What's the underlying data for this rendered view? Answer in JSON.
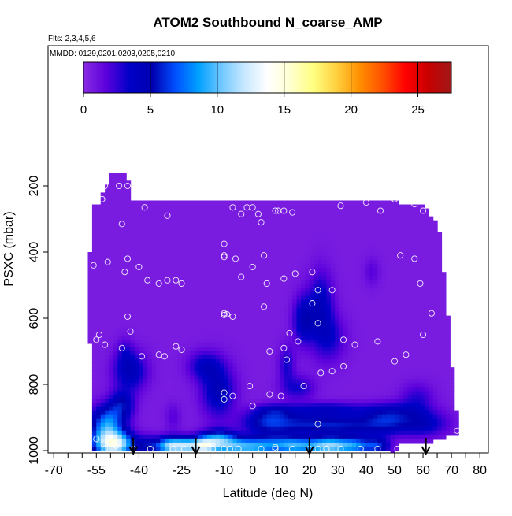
{
  "chart_data": {
    "type": "heatmap",
    "title": "ATOM2 Southbound N_coarse_AMP",
    "subtitle_flights": "Flts: 2,3,4,5,6",
    "subtitle_dates": "MMDD: 0129,0201,0203,0205,0210",
    "xlabel": "Latitude (deg N)",
    "ylabel": "PSXC (mbar)",
    "xlim": [
      -72,
      83
    ],
    "ylim": [
      1000,
      50
    ],
    "x_ticks": [
      -70,
      -55,
      -40,
      -25,
      -10,
      0,
      10,
      20,
      30,
      40,
      50,
      60,
      70,
      80
    ],
    "x_tick_labels": [
      "-70",
      "-55",
      "-40",
      "-25",
      "-10",
      "0",
      "10",
      "20",
      "30",
      "40",
      "50",
      "60",
      "70",
      "80"
    ],
    "y_ticks": [
      200,
      400,
      600,
      800,
      1000
    ],
    "y_tick_labels": [
      "200",
      "400",
      "600",
      "800",
      "1000"
    ],
    "colorbar": {
      "min": 0,
      "max": 27.5,
      "ticks": [
        0,
        5,
        10,
        15,
        20,
        25
      ],
      "tick_labels": [
        "0",
        "5",
        "10",
        "15",
        "20",
        "25"
      ],
      "colors": [
        "#8a2be2",
        "#5a00dc",
        "#0000c8",
        "#0000b0",
        "#0050ff",
        "#00a0ff",
        "#70c8ff",
        "#c8e8ff",
        "#ffffff",
        "#ffffd0",
        "#ffff80",
        "#ffd040",
        "#ff9000",
        "#ff5000",
        "#ff0000",
        "#c80000",
        "#a01818"
      ]
    },
    "domain_profile": [
      {
        "lat": -58,
        "pmin": 480,
        "pmax": 480
      },
      {
        "lat": -56,
        "pmin": 260,
        "pmax": 995
      },
      {
        "lat": -54,
        "pmin": 250,
        "pmax": 995
      },
      {
        "lat": -50,
        "pmin": 165,
        "pmax": 995
      },
      {
        "lat": -44,
        "pmin": 165,
        "pmax": 995
      },
      {
        "lat": -43,
        "pmin": 240,
        "pmax": 995
      },
      {
        "lat": 45,
        "pmin": 240,
        "pmax": 995
      },
      {
        "lat": 50,
        "pmin": 240,
        "pmax": 1010
      },
      {
        "lat": 52,
        "pmin": 260,
        "pmax": 975
      },
      {
        "lat": 60,
        "pmin": 260,
        "pmax": 975
      },
      {
        "lat": 64,
        "pmin": 300,
        "pmax": 970
      },
      {
        "lat": 66,
        "pmin": 350,
        "pmax": 965
      },
      {
        "lat": 68,
        "pmin": 520,
        "pmax": 960
      },
      {
        "lat": 71,
        "pmin": 830,
        "pmax": 950
      },
      {
        "lat": 72,
        "pmin": 900,
        "pmax": 945
      }
    ],
    "field_blobs": [
      {
        "lat": -52,
        "p": 975,
        "slat": 4,
        "sp": 30,
        "v": 7
      },
      {
        "lat": -47,
        "p": 980,
        "slat": 4,
        "sp": 25,
        "v": 9
      },
      {
        "lat": -51,
        "p": 915,
        "slat": 4,
        "sp": 35,
        "v": 7
      },
      {
        "lat": -46,
        "p": 860,
        "slat": 3,
        "sp": 30,
        "v": 4
      },
      {
        "lat": -43,
        "p": 760,
        "slat": 4,
        "sp": 40,
        "v": 4
      },
      {
        "lat": -37,
        "p": 985,
        "slat": 3,
        "sp": 20,
        "v": 4
      },
      {
        "lat": -30,
        "p": 985,
        "slat": 3,
        "sp": 18,
        "v": 7
      },
      {
        "lat": -24,
        "p": 985,
        "slat": 4,
        "sp": 18,
        "v": 10
      },
      {
        "lat": -17,
        "p": 985,
        "slat": 3,
        "sp": 18,
        "v": 9
      },
      {
        "lat": -12,
        "p": 965,
        "slat": 4,
        "sp": 20,
        "v": 6
      },
      {
        "lat": -8,
        "p": 985,
        "slat": 5,
        "sp": 20,
        "v": 6
      },
      {
        "lat": -12,
        "p": 820,
        "slat": 4,
        "sp": 55,
        "v": 4
      },
      {
        "lat": -17,
        "p": 745,
        "slat": 4,
        "sp": 30,
        "v": 3
      },
      {
        "lat": 0,
        "p": 990,
        "slat": 5,
        "sp": 20,
        "v": 6
      },
      {
        "lat": 8,
        "p": 980,
        "slat": 5,
        "sp": 20,
        "v": 5
      },
      {
        "lat": 15,
        "p": 985,
        "slat": 4,
        "sp": 18,
        "v": 6
      },
      {
        "lat": 22,
        "p": 985,
        "slat": 4,
        "sp": 18,
        "v": 5
      },
      {
        "lat": 28,
        "p": 985,
        "slat": 4,
        "sp": 18,
        "v": 8
      },
      {
        "lat": 36,
        "p": 985,
        "slat": 4,
        "sp": 18,
        "v": 7
      },
      {
        "lat": 44,
        "p": 985,
        "slat": 3,
        "sp": 18,
        "v": 5
      },
      {
        "lat": 5,
        "p": 915,
        "slat": 6,
        "sp": 25,
        "v": 4.5
      },
      {
        "lat": 18,
        "p": 920,
        "slat": 8,
        "sp": 22,
        "v": 4
      },
      {
        "lat": 33,
        "p": 925,
        "slat": 8,
        "sp": 22,
        "v": 4
      },
      {
        "lat": 47,
        "p": 915,
        "slat": 6,
        "sp": 25,
        "v": 4
      },
      {
        "lat": 60,
        "p": 920,
        "slat": 6,
        "sp": 25,
        "v": 3.5
      },
      {
        "lat": 26,
        "p": 875,
        "slat": 9,
        "sp": 15,
        "v": 3
      },
      {
        "lat": 50,
        "p": 880,
        "slat": 8,
        "sp": 20,
        "v": 2.5
      },
      {
        "lat": 8,
        "p": 880,
        "slat": 5,
        "sp": 15,
        "v": 2.5
      },
      {
        "lat": 18,
        "p": 605,
        "slat": 2.5,
        "sp": 50,
        "v": 4
      },
      {
        "lat": 24,
        "p": 560,
        "slat": 3,
        "sp": 70,
        "v": 3.5
      },
      {
        "lat": 27,
        "p": 660,
        "slat": 4,
        "sp": 50,
        "v": 2.5
      },
      {
        "lat": 12,
        "p": 740,
        "slat": 2,
        "sp": 40,
        "v": 2.5
      },
      {
        "lat": 16,
        "p": 810,
        "slat": 4,
        "sp": 25,
        "v": 2.5
      },
      {
        "lat": 42,
        "p": 460,
        "slat": 2,
        "sp": 30,
        "v": 1.2
      },
      {
        "lat": -28,
        "p": 900,
        "slat": 2,
        "sp": 30,
        "v": 1.2
      },
      {
        "lat": -45,
        "p": 700,
        "slat": 2,
        "sp": 30,
        "v": 1.5
      },
      {
        "lat": 58,
        "p": 840,
        "slat": 4,
        "sp": 30,
        "v": 2
      }
    ],
    "observations": [
      [
        -52,
        200
      ],
      [
        -47,
        200
      ],
      [
        -44,
        200
      ],
      [
        -53,
        240
      ],
      [
        -38,
        265
      ],
      [
        -30,
        290
      ],
      [
        -46,
        315
      ],
      [
        -56,
        440
      ],
      [
        -51,
        430
      ],
      [
        -44,
        420
      ],
      [
        -45,
        460
      ],
      [
        -40,
        445
      ],
      [
        -37,
        485
      ],
      [
        -33,
        495
      ],
      [
        -30,
        485
      ],
      [
        -27,
        485
      ],
      [
        -25,
        495
      ],
      [
        -44,
        595
      ],
      [
        -43,
        640
      ],
      [
        -46,
        690
      ],
      [
        -55,
        665
      ],
      [
        -54,
        650
      ],
      [
        -52,
        680
      ],
      [
        -39,
        715
      ],
      [
        -33,
        710
      ],
      [
        -31,
        715
      ],
      [
        -27,
        685
      ],
      [
        -25,
        695
      ],
      [
        -7,
        265
      ],
      [
        -4,
        285
      ],
      [
        -2,
        265
      ],
      [
        0,
        265
      ],
      [
        2,
        285
      ],
      [
        8,
        275
      ],
      [
        9,
        275
      ],
      [
        11,
        275
      ],
      [
        14,
        280
      ],
      [
        3,
        310
      ],
      [
        -10,
        375
      ],
      [
        -10,
        410
      ],
      [
        -10,
        415
      ],
      [
        -6,
        420
      ],
      [
        -4,
        475
      ],
      [
        0,
        445
      ],
      [
        4,
        410
      ],
      [
        -10,
        590
      ],
      [
        -10,
        585
      ],
      [
        -9,
        588
      ],
      [
        -7,
        595
      ],
      [
        4,
        565
      ],
      [
        5,
        495
      ],
      [
        11,
        480
      ],
      [
        15,
        465
      ],
      [
        21,
        460
      ],
      [
        23,
        515
      ],
      [
        28,
        515
      ],
      [
        21,
        555
      ],
      [
        23,
        615
      ],
      [
        13,
        645
      ],
      [
        16,
        670
      ],
      [
        32,
        665
      ],
      [
        36,
        680
      ],
      [
        6,
        700
      ],
      [
        11,
        690
      ],
      [
        12,
        725
      ],
      [
        18,
        805
      ],
      [
        24,
        765
      ],
      [
        28,
        760
      ],
      [
        32,
        745
      ],
      [
        44,
        670
      ],
      [
        50,
        730
      ],
      [
        54,
        710
      ],
      [
        6,
        830
      ],
      [
        -1,
        805
      ],
      [
        -10,
        825
      ],
      [
        -10,
        845
      ],
      [
        -7,
        835
      ],
      [
        0,
        865
      ],
      [
        10,
        835
      ],
      [
        31,
        260
      ],
      [
        40,
        250
      ],
      [
        45,
        275
      ],
      [
        50,
        240
      ],
      [
        57,
        255
      ],
      [
        60,
        275
      ],
      [
        52,
        410
      ],
      [
        57,
        420
      ],
      [
        59,
        495
      ],
      [
        60,
        650
      ],
      [
        63,
        585
      ],
      [
        -55,
        965
      ],
      [
        -52,
        995
      ],
      [
        -48,
        985
      ],
      [
        -42,
        995
      ],
      [
        -36,
        995
      ],
      [
        -28,
        995
      ],
      [
        -24,
        995
      ],
      [
        -14,
        995
      ],
      [
        -10,
        995
      ],
      [
        -8,
        995
      ],
      [
        -5,
        995
      ],
      [
        3,
        995
      ],
      [
        8,
        990
      ],
      [
        8,
        995
      ],
      [
        14,
        995
      ],
      [
        20,
        995
      ],
      [
        23,
        995
      ],
      [
        26,
        995
      ],
      [
        31,
        995
      ],
      [
        38,
        995
      ],
      [
        44,
        995
      ],
      [
        51,
        995
      ],
      [
        23,
        920
      ],
      [
        72,
        940
      ]
    ],
    "arrows_lat": [
      -42,
      -20,
      20,
      61
    ]
  }
}
